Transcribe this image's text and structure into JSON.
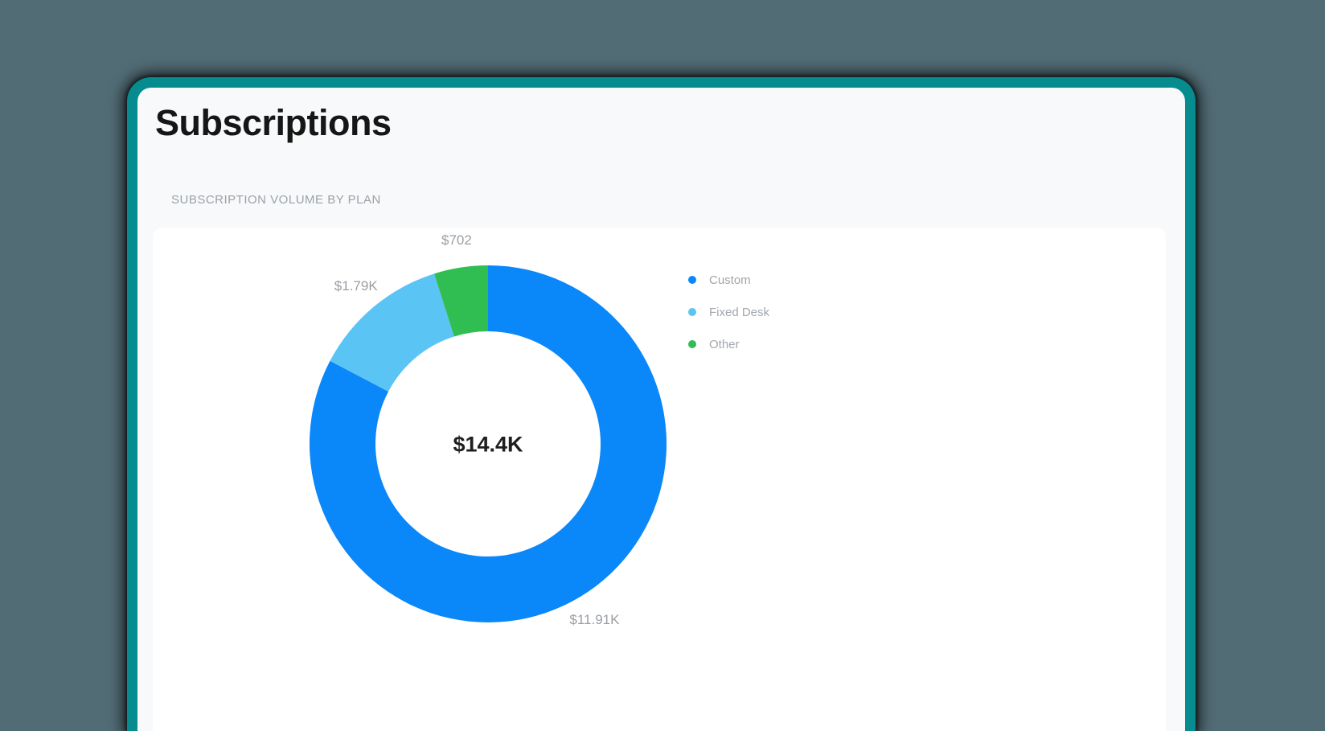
{
  "page": {
    "title": "Subscriptions"
  },
  "section": {
    "title": "SUBSCRIPTION VOLUME BY PLAN"
  },
  "theme": {
    "backdrop_color": "#526C76",
    "frame_color": "#068C8E",
    "page_bg": "#F8F9FA",
    "card_bg": "#FFFFFF",
    "label_color": "#9A9EA4",
    "legend_text_color": "#A1A6AC",
    "center_label_color": "#1F1F1F"
  },
  "chart_data": {
    "type": "pie",
    "donut": true,
    "title": "SUBSCRIPTION VOLUME BY PLAN",
    "categories": [
      "Custom",
      "Fixed Desk",
      "Other"
    ],
    "values": [
      11910,
      1790,
      702
    ],
    "value_labels": [
      "$11.91K",
      "$1.79K",
      "$702"
    ],
    "colors": [
      "#0A87F9",
      "#5AC4F5",
      "#30BE52"
    ],
    "total_label": "$14.4K",
    "total": 14402,
    "legend_position": "right",
    "legend": [
      "Custom",
      "Fixed Desk",
      "Other"
    ],
    "start_angle_deg": 0,
    "direction": "clockwise"
  }
}
